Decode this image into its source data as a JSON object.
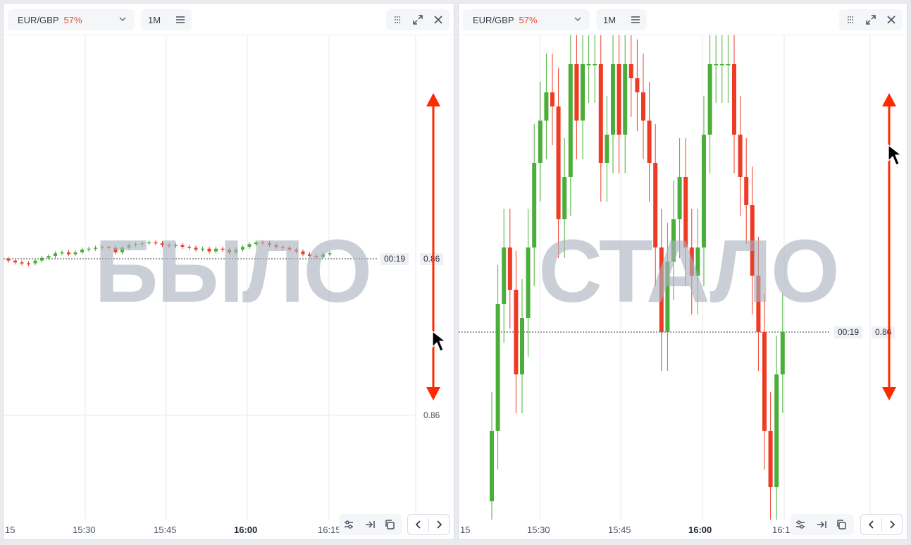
{
  "colors": {
    "up": "#4cae3a",
    "down": "#ef3b24",
    "arrow": "#ff2a00",
    "grid": "#e6e8ec",
    "watermark": "#aab2be"
  },
  "panels": [
    {
      "id": "before",
      "symbol": "EUR/GBP",
      "payout": "57%",
      "timeframe": "1M",
      "timer": "00:19",
      "price": "0.86",
      "price_lower": "0.86",
      "watermark": "БЫЛО",
      "time_axis": [
        "15",
        "15:30",
        "15:45",
        "16:00",
        "16:15"
      ],
      "icons": [
        "chevron-down-icon",
        "menu-icon",
        "grid-icon",
        "expand-icon",
        "close-icon",
        "indicators-icon",
        "scroll-to-end-icon",
        "copy-icon",
        "chevron-left-icon",
        "chevron-right-icon"
      ]
    },
    {
      "id": "after",
      "symbol": "EUR/GBP",
      "payout": "57%",
      "timeframe": "1M",
      "timer": "00:19",
      "price": "0.86",
      "watermark": "СТАЛО",
      "time_axis": [
        "15",
        "15:30",
        "15:45",
        "16:00",
        "16:15"
      ],
      "icons": [
        "chevron-down-icon",
        "menu-icon",
        "grid-icon",
        "expand-icon",
        "close-icon",
        "indicators-icon",
        "scroll-to-end-icon",
        "copy-icon",
        "chevron-left-icon",
        "chevron-right-icon"
      ]
    }
  ],
  "chart_data": [
    {
      "type": "candlestick",
      "title": "EUR/GBP 1M (before)",
      "x_ticks": [
        "15",
        "15:30",
        "15:45",
        "16:00",
        "16:15"
      ],
      "current_price": 0.86,
      "candles_relative_pct": [
        {
          "o": 0.0,
          "c": -0.02
        },
        {
          "o": -0.02,
          "c": -0.04
        },
        {
          "o": -0.04,
          "c": -0.05
        },
        {
          "o": -0.05,
          "c": -0.06
        },
        {
          "o": -0.05,
          "c": -0.02
        },
        {
          "o": -0.02,
          "c": 0.01
        },
        {
          "o": 0.01,
          "c": 0.03
        },
        {
          "o": 0.03,
          "c": 0.06
        },
        {
          "o": 0.06,
          "c": 0.07
        },
        {
          "o": 0.07,
          "c": 0.05
        },
        {
          "o": 0.05,
          "c": 0.07
        },
        {
          "o": 0.07,
          "c": 0.1
        },
        {
          "o": 0.1,
          "c": 0.11
        },
        {
          "o": 0.11,
          "c": 0.12
        },
        {
          "o": 0.12,
          "c": 0.13
        },
        {
          "o": 0.13,
          "c": 0.12
        },
        {
          "o": 0.12,
          "c": 0.07
        },
        {
          "o": 0.07,
          "c": 0.12
        },
        {
          "o": 0.12,
          "c": 0.15
        },
        {
          "o": 0.15,
          "c": 0.16
        },
        {
          "o": 0.16,
          "c": 0.17
        },
        {
          "o": 0.17,
          "c": 0.18
        },
        {
          "o": 0.18,
          "c": 0.17
        },
        {
          "o": 0.17,
          "c": 0.15
        },
        {
          "o": 0.15,
          "c": 0.14
        },
        {
          "o": 0.14,
          "c": 0.15
        },
        {
          "o": 0.15,
          "c": 0.13
        },
        {
          "o": 0.13,
          "c": 0.12
        },
        {
          "o": 0.12,
          "c": 0.1
        },
        {
          "o": 0.1,
          "c": 0.11
        },
        {
          "o": 0.11,
          "c": 0.08
        },
        {
          "o": 0.08,
          "c": 0.11
        },
        {
          "o": 0.11,
          "c": 0.1
        },
        {
          "o": 0.1,
          "c": 0.07
        },
        {
          "o": 0.07,
          "c": 0.1
        },
        {
          "o": 0.1,
          "c": 0.13
        },
        {
          "o": 0.13,
          "c": 0.16
        },
        {
          "o": 0.16,
          "c": 0.18
        },
        {
          "o": 0.18,
          "c": 0.17
        },
        {
          "o": 0.17,
          "c": 0.15
        },
        {
          "o": 0.15,
          "c": 0.13
        },
        {
          "o": 0.13,
          "c": 0.12
        },
        {
          "o": 0.12,
          "c": 0.1
        },
        {
          "o": 0.1,
          "c": 0.08
        },
        {
          "o": 0.08,
          "c": 0.05
        },
        {
          "o": 0.05,
          "c": 0.03
        },
        {
          "o": 0.03,
          "c": 0.02
        },
        {
          "o": 0.02,
          "c": 0.05
        },
        {
          "o": 0.05,
          "c": 0.06
        }
      ]
    },
    {
      "type": "candlestick",
      "title": "EUR/GBP 1M (after, zoomed)",
      "x_ticks": [
        "15",
        "15:30",
        "15:45",
        "16:00",
        "16:15"
      ],
      "current_price": 0.86,
      "candles_relative_pct": [
        {
          "o": -1.2,
          "c": -0.7
        },
        {
          "o": -0.7,
          "c": 0.2
        },
        {
          "o": 0.2,
          "c": 0.6
        },
        {
          "o": 0.6,
          "c": 0.3
        },
        {
          "o": 0.3,
          "c": -0.3
        },
        {
          "o": -0.3,
          "c": 0.1
        },
        {
          "o": 0.1,
          "c": 0.6
        },
        {
          "o": 0.6,
          "c": 1.2
        },
        {
          "o": 1.2,
          "c": 1.5
        },
        {
          "o": 1.5,
          "c": 1.7
        },
        {
          "o": 1.7,
          "c": 1.6
        },
        {
          "o": 1.6,
          "c": 0.8
        },
        {
          "o": 0.8,
          "c": 1.1
        },
        {
          "o": 1.1,
          "c": 1.9
        },
        {
          "o": 1.9,
          "c": 1.5
        },
        {
          "o": 1.5,
          "c": 1.9
        },
        {
          "o": 1.9,
          "c": 1.9
        },
        {
          "o": 1.9,
          "c": 1.9
        },
        {
          "o": 1.9,
          "c": 1.2
        },
        {
          "o": 1.2,
          "c": 1.4
        },
        {
          "o": 1.4,
          "c": 1.9
        },
        {
          "o": 1.9,
          "c": 1.4
        },
        {
          "o": 1.4,
          "c": 1.9
        },
        {
          "o": 1.9,
          "c": 1.8
        },
        {
          "o": 1.8,
          "c": 1.7
        },
        {
          "o": 1.7,
          "c": 1.5
        },
        {
          "o": 1.5,
          "c": 1.2
        },
        {
          "o": 1.2,
          "c": 0.6
        },
        {
          "o": 0.6,
          "c": 0.0
        },
        {
          "o": 0.0,
          "c": 0.5
        },
        {
          "o": 0.5,
          "c": 0.8
        },
        {
          "o": 0.8,
          "c": 1.1
        },
        {
          "o": 1.1,
          "c": 0.6
        },
        {
          "o": 0.6,
          "c": 0.4
        },
        {
          "o": 0.4,
          "c": 0.6
        },
        {
          "o": 0.6,
          "c": 1.4
        },
        {
          "o": 1.4,
          "c": 1.9
        },
        {
          "o": 1.9,
          "c": 1.9
        },
        {
          "o": 1.9,
          "c": 1.9
        },
        {
          "o": 1.9,
          "c": 1.9
        },
        {
          "o": 1.9,
          "c": 1.4
        },
        {
          "o": 1.4,
          "c": 1.1
        },
        {
          "o": 1.1,
          "c": 0.9
        },
        {
          "o": 0.9,
          "c": 0.4
        },
        {
          "o": 0.4,
          "c": 0.0
        },
        {
          "o": 0.0,
          "c": -0.7
        },
        {
          "o": -0.7,
          "c": -1.1
        },
        {
          "o": -1.1,
          "c": -0.3
        },
        {
          "o": -0.3,
          "c": 0.0
        }
      ]
    }
  ]
}
